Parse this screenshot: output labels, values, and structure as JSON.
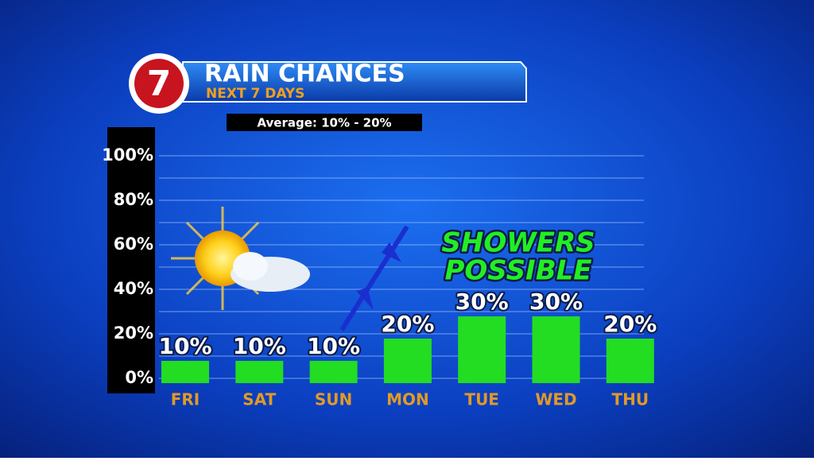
{
  "chart_data": {
    "type": "bar",
    "logo": "7",
    "title": "RAIN CHANCES",
    "subtitle": "NEXT 7 DAYS",
    "annotation": "Average: 10% - 20%",
    "callout": [
      "SHOWERS",
      "POSSIBLE"
    ],
    "categories": [
      "FRI",
      "SAT",
      "SUN",
      "MON",
      "TUE",
      "WED",
      "THU"
    ],
    "values": [
      10,
      10,
      10,
      20,
      30,
      30,
      20
    ],
    "value_labels": [
      "10%",
      "10%",
      "10%",
      "20%",
      "30%",
      "30%",
      "20%"
    ],
    "color": "#22dd22",
    "ylim": [
      0,
      100
    ],
    "yticks": [
      {
        "value": 0,
        "label": "0%"
      },
      {
        "value": 20,
        "label": "20%"
      },
      {
        "value": 40,
        "label": "40%"
      },
      {
        "value": 60,
        "label": "60%"
      },
      {
        "value": 80,
        "label": "80%"
      },
      {
        "value": 100,
        "label": "100%"
      }
    ],
    "minor_yticks": [
      10,
      30,
      50,
      70,
      90
    ],
    "grid": true
  }
}
